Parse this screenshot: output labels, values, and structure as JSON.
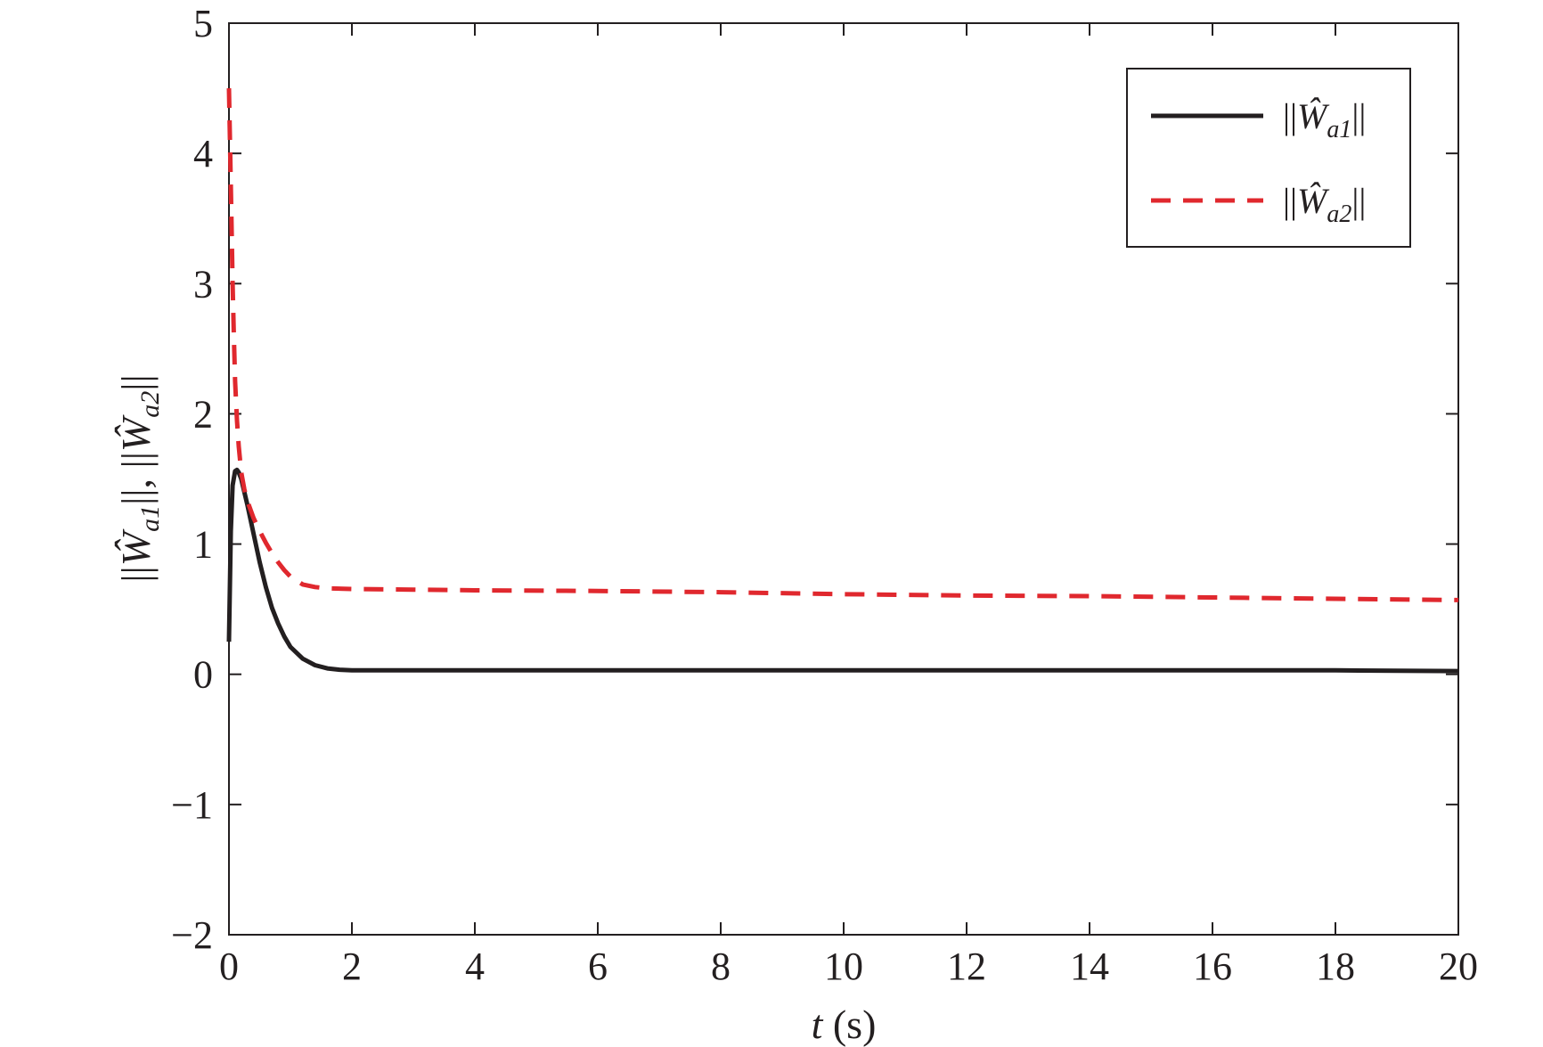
{
  "chart_data": {
    "type": "line",
    "xlabel": {
      "var": "t",
      "rest": " (s)"
    },
    "ylabel": {
      "segments": [
        "||",
        "Ŵ",
        "a1",
        "||, ||",
        "Ŵ",
        "a2",
        "||"
      ]
    },
    "xlim": [
      0,
      20
    ],
    "ylim": [
      -2,
      5
    ],
    "xticks": [
      0,
      2,
      4,
      6,
      8,
      10,
      12,
      14,
      16,
      18,
      20
    ],
    "yticks": [
      -2,
      -1,
      0,
      1,
      2,
      3,
      4,
      5
    ],
    "ytick_labels": [
      "−2",
      "−1",
      "0",
      "1",
      "2",
      "3",
      "4",
      "5"
    ],
    "grid": false,
    "legend_position": "top-right",
    "series": [
      {
        "name": {
          "open": "||",
          "symbol": "Ŵ",
          "sub": "a1",
          "close": "||"
        },
        "color": "#231f20",
        "style": "solid",
        "x": [
          0,
          0.03,
          0.06,
          0.1,
          0.13,
          0.16,
          0.2,
          0.3,
          0.4,
          0.5,
          0.6,
          0.7,
          0.8,
          0.9,
          1.0,
          1.2,
          1.4,
          1.6,
          1.8,
          2.0,
          2.5,
          3,
          4,
          6,
          8,
          10,
          12,
          14,
          16,
          18,
          20
        ],
        "y": [
          0.25,
          1.1,
          1.45,
          1.56,
          1.57,
          1.55,
          1.5,
          1.3,
          1.08,
          0.86,
          0.67,
          0.51,
          0.39,
          0.29,
          0.21,
          0.12,
          0.07,
          0.045,
          0.035,
          0.03,
          0.03,
          0.03,
          0.03,
          0.03,
          0.03,
          0.03,
          0.03,
          0.03,
          0.03,
          0.03,
          0.025
        ]
      },
      {
        "name": {
          "open": "||",
          "symbol": "Ŵ",
          "sub": "a2",
          "close": "||"
        },
        "color": "#e0282e",
        "style": "dashed",
        "x": [
          0,
          0.02,
          0.04,
          0.06,
          0.08,
          0.1,
          0.13,
          0.16,
          0.2,
          0.25,
          0.3,
          0.4,
          0.5,
          0.6,
          0.7,
          0.8,
          0.9,
          1.0,
          1.2,
          1.4,
          1.6,
          2,
          3,
          4,
          6,
          8,
          10,
          12,
          14,
          16,
          18,
          20
        ],
        "y": [
          4.5,
          4.0,
          3.5,
          3.0,
          2.6,
          2.25,
          1.95,
          1.75,
          1.55,
          1.42,
          1.33,
          1.2,
          1.1,
          1.01,
          0.93,
          0.86,
          0.8,
          0.75,
          0.69,
          0.67,
          0.66,
          0.655,
          0.65,
          0.645,
          0.64,
          0.63,
          0.615,
          0.605,
          0.6,
          0.59,
          0.58,
          0.57
        ]
      }
    ]
  }
}
